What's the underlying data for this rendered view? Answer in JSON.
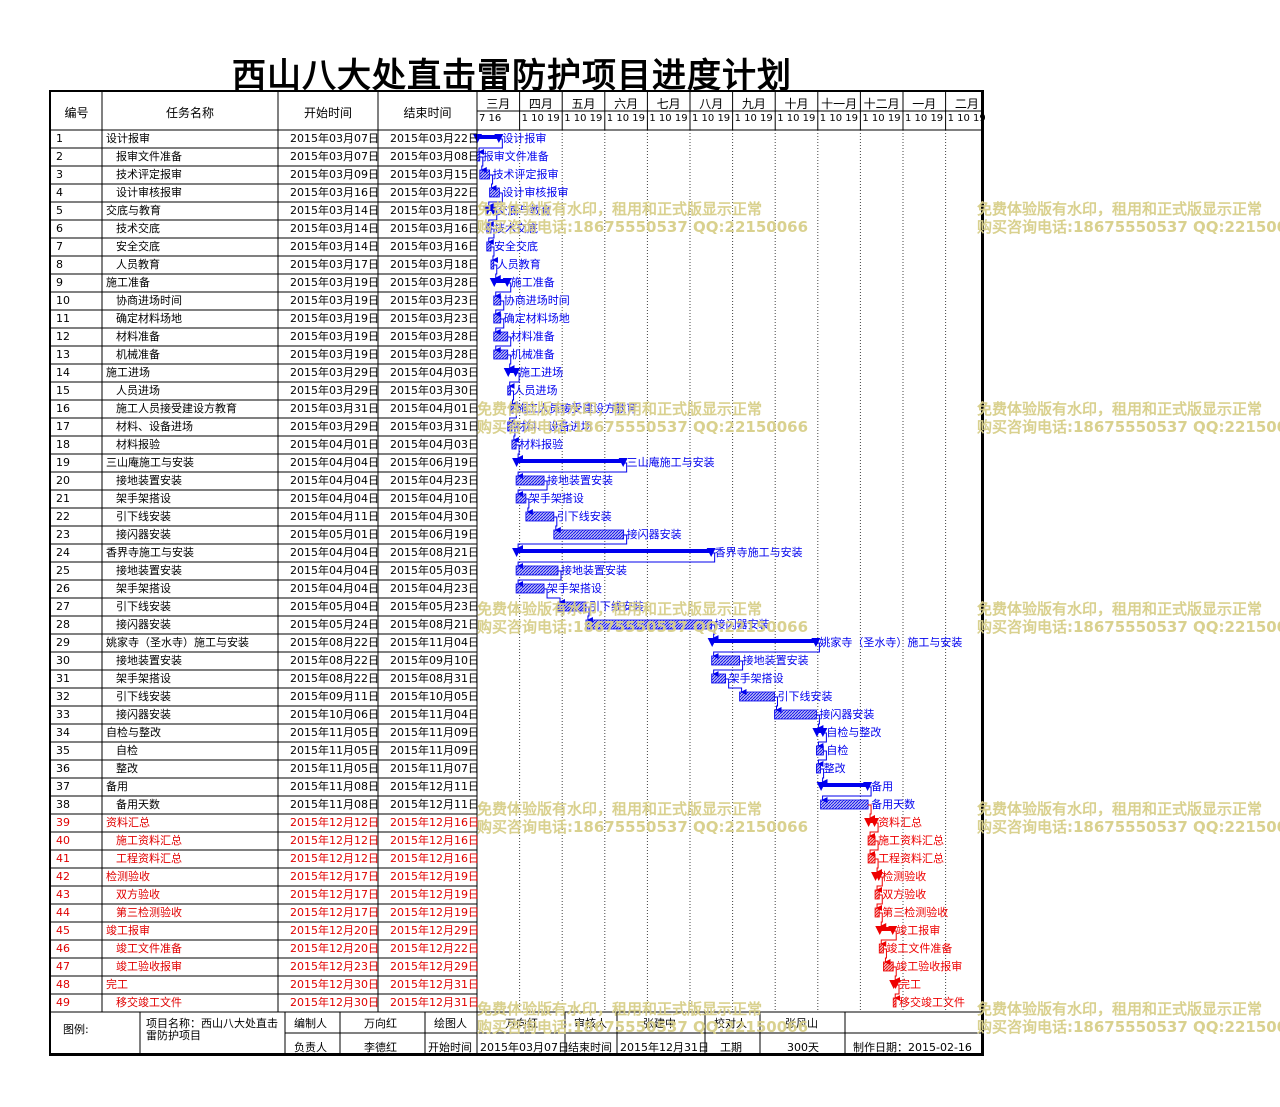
{
  "title": "西山八大处直击雷防护项目进度计划",
  "headers": {
    "id": "编号",
    "name": "任务名称",
    "start": "开始时间",
    "end": "结束时间"
  },
  "months": [
    {
      "name": "三月",
      "ticks": "7 16"
    },
    {
      "name": "四月",
      "ticks": "1 10 19"
    },
    {
      "name": "五月",
      "ticks": "1 10 19"
    },
    {
      "name": "六月",
      "ticks": "1 10 19"
    },
    {
      "name": "七月",
      "ticks": "1 10 19"
    },
    {
      "name": "八月",
      "ticks": "1 10 19"
    },
    {
      "name": "九月",
      "ticks": "1 10 19"
    },
    {
      "name": "十月",
      "ticks": "1 10 19"
    },
    {
      "name": "十一月",
      "ticks": "1 10 19"
    },
    {
      "name": "十二月",
      "ticks": "1 10 19"
    },
    {
      "name": "一月",
      "ticks": "1 10 19"
    },
    {
      "name": "二月",
      "ticks": "1 10 19"
    }
  ],
  "colors": {
    "blue": "#0000ee",
    "red": "#ee0000",
    "watermark": "#d8cf8a"
  },
  "watermark": [
    "免费体验版有水印，租用和正式版显示正常",
    "购买咨询电话:18675550537 QQ:22150066"
  ],
  "chart_data": {
    "type": "gantt",
    "title": "西山八大处直击雷防护项目进度计划",
    "x_range": [
      "2015-03-07",
      "2016-02-29"
    ],
    "tasks": [
      {
        "id": "1",
        "name": "设计报审",
        "start": "2015年03月07日",
        "end": "2015年03月22日",
        "summary": true,
        "indent": 0,
        "red": false
      },
      {
        "id": "2",
        "name": "报审文件准备",
        "start": "2015年03月07日",
        "end": "2015年03月08日",
        "summary": false,
        "indent": 1,
        "red": false
      },
      {
        "id": "3",
        "name": "技术评定报审",
        "start": "2015年03月09日",
        "end": "2015年03月15日",
        "summary": false,
        "indent": 1,
        "red": false
      },
      {
        "id": "4",
        "name": "设计审核报审",
        "start": "2015年03月16日",
        "end": "2015年03月22日",
        "summary": false,
        "indent": 1,
        "red": false
      },
      {
        "id": "5",
        "name": "交底与教育",
        "start": "2015年03月14日",
        "end": "2015年03月18日",
        "summary": true,
        "indent": 0,
        "red": false
      },
      {
        "id": "6",
        "name": "技术交底",
        "start": "2015年03月14日",
        "end": "2015年03月16日",
        "summary": false,
        "indent": 1,
        "red": false
      },
      {
        "id": "7",
        "name": "安全交底",
        "start": "2015年03月14日",
        "end": "2015年03月16日",
        "summary": false,
        "indent": 1,
        "red": false
      },
      {
        "id": "8",
        "name": "人员教育",
        "start": "2015年03月17日",
        "end": "2015年03月18日",
        "summary": false,
        "indent": 1,
        "red": false
      },
      {
        "id": "9",
        "name": "施工准备",
        "start": "2015年03月19日",
        "end": "2015年03月28日",
        "summary": true,
        "indent": 0,
        "red": false
      },
      {
        "id": "10",
        "name": "协商进场时间",
        "start": "2015年03月19日",
        "end": "2015年03月23日",
        "summary": false,
        "indent": 1,
        "red": false
      },
      {
        "id": "11",
        "name": "确定材料场地",
        "start": "2015年03月19日",
        "end": "2015年03月23日",
        "summary": false,
        "indent": 1,
        "red": false
      },
      {
        "id": "12",
        "name": "材料准备",
        "start": "2015年03月19日",
        "end": "2015年03月28日",
        "summary": false,
        "indent": 1,
        "red": false
      },
      {
        "id": "13",
        "name": "机械准备",
        "start": "2015年03月19日",
        "end": "2015年03月28日",
        "summary": false,
        "indent": 1,
        "red": false
      },
      {
        "id": "14",
        "name": "施工进场",
        "start": "2015年03月29日",
        "end": "2015年04月03日",
        "summary": true,
        "indent": 0,
        "red": false
      },
      {
        "id": "15",
        "name": "人员进场",
        "start": "2015年03月29日",
        "end": "2015年03月30日",
        "summary": false,
        "indent": 1,
        "red": false
      },
      {
        "id": "16",
        "name": "施工人员接受建设方教育",
        "start": "2015年03月31日",
        "end": "2015年04月01日",
        "summary": false,
        "indent": 1,
        "red": false
      },
      {
        "id": "17",
        "name": "材料、设备进场",
        "start": "2015年03月29日",
        "end": "2015年03月31日",
        "summary": false,
        "indent": 1,
        "red": false
      },
      {
        "id": "18",
        "name": "材料报验",
        "start": "2015年04月01日",
        "end": "2015年04月03日",
        "summary": false,
        "indent": 1,
        "red": false
      },
      {
        "id": "19",
        "name": "三山庵施工与安装",
        "start": "2015年04月04日",
        "end": "2015年06月19日",
        "summary": true,
        "indent": 0,
        "red": false
      },
      {
        "id": "20",
        "name": "接地装置安装",
        "start": "2015年04月04日",
        "end": "2015年04月23日",
        "summary": false,
        "indent": 1,
        "red": false
      },
      {
        "id": "21",
        "name": "架手架搭设",
        "start": "2015年04月04日",
        "end": "2015年04月10日",
        "summary": false,
        "indent": 1,
        "red": false
      },
      {
        "id": "22",
        "name": "引下线安装",
        "start": "2015年04月11日",
        "end": "2015年04月30日",
        "summary": false,
        "indent": 1,
        "red": false
      },
      {
        "id": "23",
        "name": "接闪器安装",
        "start": "2015年05月01日",
        "end": "2015年06月19日",
        "summary": false,
        "indent": 1,
        "red": false
      },
      {
        "id": "24",
        "name": "香界寺施工与安装",
        "start": "2015年04月04日",
        "end": "2015年08月21日",
        "summary": true,
        "indent": 0,
        "red": false
      },
      {
        "id": "25",
        "name": "接地装置安装",
        "start": "2015年04月04日",
        "end": "2015年05月03日",
        "summary": false,
        "indent": 1,
        "red": false
      },
      {
        "id": "26",
        "name": "架手架搭设",
        "start": "2015年04月04日",
        "end": "2015年04月23日",
        "summary": false,
        "indent": 1,
        "red": false
      },
      {
        "id": "27",
        "name": "引下线安装",
        "start": "2015年05月04日",
        "end": "2015年05月23日",
        "summary": false,
        "indent": 1,
        "red": false
      },
      {
        "id": "28",
        "name": "接闪器安装",
        "start": "2015年05月24日",
        "end": "2015年08月21日",
        "summary": false,
        "indent": 1,
        "red": false
      },
      {
        "id": "29",
        "name": "姚家寺（圣水寺）施工与安装",
        "start": "2015年08月22日",
        "end": "2015年11月04日",
        "summary": true,
        "indent": 0,
        "red": false
      },
      {
        "id": "30",
        "name": "接地装置安装",
        "start": "2015年08月22日",
        "end": "2015年09月10日",
        "summary": false,
        "indent": 1,
        "red": false
      },
      {
        "id": "31",
        "name": "架手架搭设",
        "start": "2015年08月22日",
        "end": "2015年08月31日",
        "summary": false,
        "indent": 1,
        "red": false
      },
      {
        "id": "32",
        "name": "引下线安装",
        "start": "2015年09月11日",
        "end": "2015年10月05日",
        "summary": false,
        "indent": 1,
        "red": false
      },
      {
        "id": "33",
        "name": "接闪器安装",
        "start": "2015年10月06日",
        "end": "2015年11月04日",
        "summary": false,
        "indent": 1,
        "red": false
      },
      {
        "id": "34",
        "name": "自检与整改",
        "start": "2015年11月05日",
        "end": "2015年11月09日",
        "summary": true,
        "indent": 0,
        "red": false
      },
      {
        "id": "35",
        "name": "自检",
        "start": "2015年11月05日",
        "end": "2015年11月09日",
        "summary": false,
        "indent": 1,
        "red": false
      },
      {
        "id": "36",
        "name": "整改",
        "start": "2015年11月05日",
        "end": "2015年11月07日",
        "summary": false,
        "indent": 1,
        "red": false
      },
      {
        "id": "37",
        "name": "备用",
        "start": "2015年11月08日",
        "end": "2015年12月11日",
        "summary": true,
        "indent": 0,
        "red": false
      },
      {
        "id": "38",
        "name": "备用天数",
        "start": "2015年11月08日",
        "end": "2015年12月11日",
        "summary": false,
        "indent": 1,
        "red": false
      },
      {
        "id": "39",
        "name": "资料汇总",
        "start": "2015年12月12日",
        "end": "2015年12月16日",
        "summary": true,
        "indent": 0,
        "red": true
      },
      {
        "id": "40",
        "name": "施工资料汇总",
        "start": "2015年12月12日",
        "end": "2015年12月16日",
        "summary": false,
        "indent": 1,
        "red": true
      },
      {
        "id": "41",
        "name": "工程资料汇总",
        "start": "2015年12月12日",
        "end": "2015年12月16日",
        "summary": false,
        "indent": 1,
        "red": true
      },
      {
        "id": "42",
        "name": "检测验收",
        "start": "2015年12月17日",
        "end": "2015年12月19日",
        "summary": true,
        "indent": 0,
        "red": true
      },
      {
        "id": "43",
        "name": "双方验收",
        "start": "2015年12月17日",
        "end": "2015年12月19日",
        "summary": false,
        "indent": 1,
        "red": true
      },
      {
        "id": "44",
        "name": "第三检测验收",
        "start": "2015年12月17日",
        "end": "2015年12月19日",
        "summary": false,
        "indent": 1,
        "red": true
      },
      {
        "id": "45",
        "name": "竣工报审",
        "start": "2015年12月20日",
        "end": "2015年12月29日",
        "summary": true,
        "indent": 0,
        "red": true
      },
      {
        "id": "46",
        "name": "竣工文件准备",
        "start": "2015年12月20日",
        "end": "2015年12月22日",
        "summary": false,
        "indent": 1,
        "red": true
      },
      {
        "id": "47",
        "name": "竣工验收报审",
        "start": "2015年12月23日",
        "end": "2015年12月29日",
        "summary": false,
        "indent": 1,
        "red": true
      },
      {
        "id": "48",
        "name": "完工",
        "start": "2015年12月30日",
        "end": "2015年12月31日",
        "summary": true,
        "indent": 0,
        "red": true
      },
      {
        "id": "49",
        "name": "移交竣工文件",
        "start": "2015年12月30日",
        "end": "2015年12月31日",
        "summary": false,
        "indent": 1,
        "red": true
      }
    ]
  },
  "footer": {
    "legend": "图例:",
    "project_label": "项目名称：西山八大处直击雷防护项目",
    "compiler_label": "编制人",
    "compiler": "万向红",
    "drawer_label": "绘图人",
    "drawer": "万向红",
    "reviewer_label": "审核人",
    "reviewer": "张建中",
    "checker_label": "校对人",
    "checker": "张风山",
    "owner_label": "负责人",
    "owner": "李德红",
    "start_label": "开始时间",
    "start": "2015年03月07日",
    "end_label": "结束时间",
    "end": "2015年12月31日",
    "duration_label": "工期",
    "duration": "300天",
    "made_date": "制作日期：2015-02-16"
  }
}
